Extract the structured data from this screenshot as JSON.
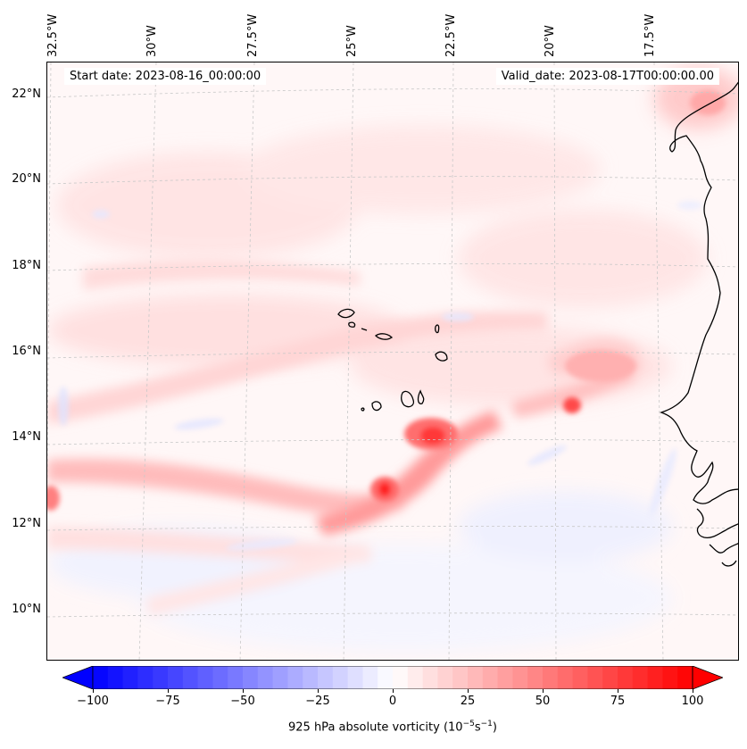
{
  "map": {
    "annotations": {
      "start": "Start date: 2023-08-16_00:00:00",
      "valid": "Valid_date: 2023-08-17T00:00:00.00"
    },
    "lon_ticks": [
      "32.5°W",
      "30°W",
      "27.5°W",
      "25°W",
      "22.5°W",
      "20°W",
      "17.5°W"
    ],
    "lat_ticks": [
      "22°N",
      "20°N",
      "18°N",
      "16°N",
      "14°N",
      "12°N",
      "10°N"
    ],
    "field": "925 hPa absolute vorticity",
    "colors": {
      "min": "#0000ff",
      "zero": "#ffffff",
      "max": "#ff0000",
      "coast": "#000000",
      "grid": "#c8c8c8"
    }
  },
  "colorbar": {
    "ticks": [
      "−100",
      "−75",
      "−50",
      "−25",
      "0",
      "25",
      "50",
      "75",
      "100"
    ],
    "range": [
      -100,
      100
    ],
    "label_text": "925 hPa absolute vorticity (10",
    "label_exp1": "−5",
    "label_mid": "s",
    "label_exp2": "−1",
    "label_end": ")"
  }
}
